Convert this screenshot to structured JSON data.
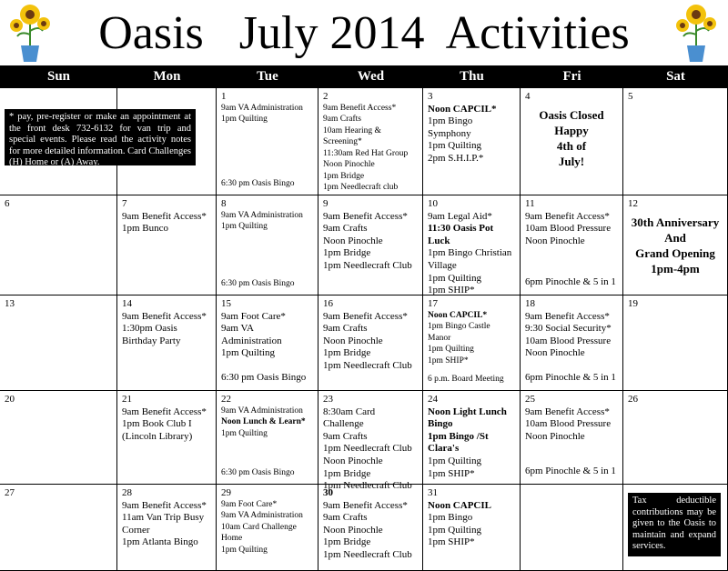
{
  "title": "Oasis   July 2014  Activities",
  "days": [
    "Sun",
    "Mon",
    "Tue",
    "Wed",
    "Thu",
    "Fri",
    "Sat"
  ],
  "weeks": [
    [
      null,
      null,
      {
        "date": "1",
        "lines": [
          "9am VA Administration",
          "1pm Quilting"
        ],
        "bottom": [
          "6:30 pm Oasis Bingo"
        ]
      },
      {
        "date": "2",
        "lines": [
          "9am Benefit Access*",
          "9am Crafts",
          "10am Hearing & Screening*",
          "11:30am Red Hat Group",
          "Noon Pinochle",
          "1pm Bridge",
          "1pm Needlecraft club"
        ]
      },
      {
        "date": "3",
        "lines": [
          "Noon CAPCIL*",
          "1pm Bingo Symphony",
          "1pm Quilting",
          "2pm S.H.I.P.*"
        ]
      },
      {
        "date": "4",
        "center": [
          "Oasis Closed",
          "Happy",
          "4th of",
          "July!"
        ]
      },
      {
        "date": "5"
      }
    ],
    [
      {
        "date": "6"
      },
      {
        "date": "7",
        "lines": [
          "9am Benefit Access*",
          "1pm Bunco"
        ]
      },
      {
        "date": "8",
        "lines": [
          "9am VA Administration",
          "1pm Quilting"
        ],
        "bottom": [
          "6:30 pm Oasis Bingo"
        ]
      },
      {
        "date": "9",
        "lines": [
          "9am Benefit Access*",
          "9am Crafts",
          "Noon Pinochle",
          "1pm Bridge",
          "1pm  Needlecraft Club"
        ]
      },
      {
        "date": "10",
        "lines": [
          "9am Legal Aid*",
          "11:30 Oasis Pot Luck",
          "1pm Bingo Christian Village",
          "1pm Quilting",
          "1pm SHIP*"
        ]
      },
      {
        "date": "11",
        "lines": [
          "9am Benefit Access*",
          "10am Blood Pressure",
          "Noon Pinochle"
        ],
        "bottom": [
          "6pm Pinochle & 5 in 1"
        ]
      },
      {
        "date": "12",
        "center": [
          "30th Anniversary",
          "And",
          "Grand Opening",
          "1pm-4pm"
        ]
      }
    ],
    [
      {
        "date": "13"
      },
      {
        "date": "14",
        "lines": [
          "9am Benefit Access*",
          "1:30pm Oasis Birthday Party"
        ]
      },
      {
        "date": "15",
        "lines": [
          "9am Foot Care*",
          "9am VA Administration",
          "1pm Quilting"
        ],
        "bottom": [
          "6:30 pm Oasis Bingo"
        ]
      },
      {
        "date": "16",
        "lines": [
          "9am Benefit Access*",
          "9am Crafts",
          "Noon Pinochle",
          "1pm Bridge",
          "1pm Needlecraft Club"
        ]
      },
      {
        "date": "17",
        "lines": [
          "Noon CAPCIL*",
          "1pm Bingo Castle Manor",
          "1pm Quilting",
          "1pm SHIP*"
        ],
        "bottom": [
          "6 p.m. Board Meeting"
        ]
      },
      {
        "date": "18",
        "lines": [
          "9am Benefit Access*",
          "9:30 Social Security*",
          "10am Blood Pressure",
          "Noon Pinochle"
        ],
        "bottom": [
          "6pm Pinochle & 5 in 1"
        ]
      },
      {
        "date": "19"
      }
    ],
    [
      {
        "date": "20"
      },
      {
        "date": "21",
        "lines": [
          "9am Benefit Access*",
          "1pm Book Club I",
          "(Lincoln Library)"
        ]
      },
      {
        "date": "22",
        "lines": [
          "9am VA Administration",
          "Noon Lunch & Learn*",
          "1pm Quilting"
        ],
        "bottom": [
          "6:30 pm Oasis Bingo"
        ]
      },
      {
        "date": "23",
        "lines": [
          "8:30am Card Challenge",
          "9am Crafts",
          "1pm Needlecraft Club",
          "Noon Pinochle",
          "1pm Bridge",
          "1pm Needlecraft Club"
        ]
      },
      {
        "date": "24",
        "lines": [
          "Noon Light Lunch Bingo",
          "1pm Bingo /St Clara's",
          "1pm Quilting",
          "1pm SHIP*"
        ]
      },
      {
        "date": "25",
        "lines": [
          "9am Benefit Access*",
          "10am Blood Pressure",
          "Noon Pinochle"
        ],
        "bottom": [
          "6pm Pinochle & 5 in 1"
        ]
      },
      {
        "date": "26"
      }
    ],
    [
      {
        "date": "27"
      },
      {
        "date": "28",
        "lines": [
          "9am Benefit Access*",
          "11am Van Trip Busy Corner",
          "1pm Atlanta Bingo"
        ]
      },
      {
        "date": "29",
        "lines": [
          "9am Foot Care*",
          "9am VA Administration",
          "10am Card Challenge Home",
          "1pm Quilting"
        ]
      },
      {
        "date": "30",
        "lines": [
          "9am Benefit Access*",
          "9am Crafts",
          "Noon Pinochle",
          "1pm Bridge",
          "1pm Needlecraft Club"
        ]
      },
      {
        "date": "31",
        "lines": [
          "Noon CAPCIL",
          "1pm Bingo",
          "1pm Quilting",
          "1pm SHIP*"
        ]
      },
      null,
      null
    ]
  ],
  "notes": {
    "register": "* pay, pre-register or make an appointment at the front desk 732-6132 for van trip and special events.  Please read the activity notes for more detailed information. Card Challenges (H) Home or (A) Away.",
    "tax": "Tax deductible contributions may be given to the Oasis to maintain and expand services."
  }
}
